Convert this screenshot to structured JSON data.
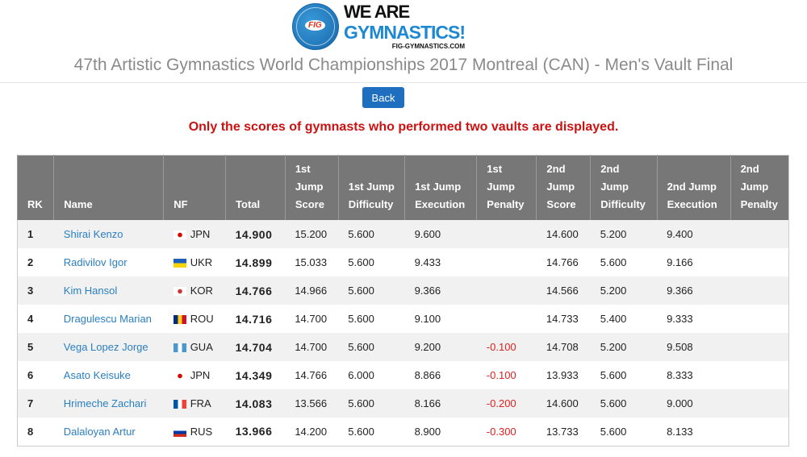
{
  "logo": {
    "line1": "WE ARE",
    "line2": "GYMNASTICS!",
    "line3": "FIG-GYMNASTICS.COM",
    "badge": "FIG"
  },
  "title": "47th Artistic Gymnastics World Championships 2017 Montreal (CAN) - Men's Vault Final",
  "back_label": "Back",
  "notice": "Only the scores of gymnasts who performed two vaults are displayed.",
  "columns": [
    "RK",
    "Name",
    "NF",
    "Total",
    "1st Jump Score",
    "1st Jump Difficulty",
    "1st Jump Execution",
    "1st Jump Penalty",
    "2nd Jump Score",
    "2nd Jump Difficulty",
    "2nd Jump Execution",
    "2nd Jump Penalty"
  ],
  "rows": [
    {
      "rk": "1",
      "name": "Shirai Kenzo",
      "nf": "JPN",
      "total": "14.900",
      "s1": "15.200",
      "d1": "5.600",
      "e1": "9.600",
      "p1": "",
      "s2": "14.600",
      "d2": "5.200",
      "e2": "9.400",
      "p2": ""
    },
    {
      "rk": "2",
      "name": "Radivilov Igor",
      "nf": "UKR",
      "total": "14.899",
      "s1": "15.033",
      "d1": "5.600",
      "e1": "9.433",
      "p1": "",
      "s2": "14.766",
      "d2": "5.600",
      "e2": "9.166",
      "p2": ""
    },
    {
      "rk": "3",
      "name": "Kim Hansol",
      "nf": "KOR",
      "total": "14.766",
      "s1": "14.966",
      "d1": "5.600",
      "e1": "9.366",
      "p1": "",
      "s2": "14.566",
      "d2": "5.200",
      "e2": "9.366",
      "p2": ""
    },
    {
      "rk": "4",
      "name": "Dragulescu Marian",
      "nf": "ROU",
      "total": "14.716",
      "s1": "14.700",
      "d1": "5.600",
      "e1": "9.100",
      "p1": "",
      "s2": "14.733",
      "d2": "5.400",
      "e2": "9.333",
      "p2": ""
    },
    {
      "rk": "5",
      "name": "Vega Lopez Jorge",
      "nf": "GUA",
      "total": "14.704",
      "s1": "14.700",
      "d1": "5.600",
      "e1": "9.200",
      "p1": "-0.100",
      "s2": "14.708",
      "d2": "5.200",
      "e2": "9.508",
      "p2": ""
    },
    {
      "rk": "6",
      "name": "Asato Keisuke",
      "nf": "JPN",
      "total": "14.349",
      "s1": "14.766",
      "d1": "6.000",
      "e1": "8.866",
      "p1": "-0.100",
      "s2": "13.933",
      "d2": "5.600",
      "e2": "8.333",
      "p2": ""
    },
    {
      "rk": "7",
      "name": "Hrimeche Zachari",
      "nf": "FRA",
      "total": "14.083",
      "s1": "13.566",
      "d1": "5.600",
      "e1": "8.166",
      "p1": "-0.200",
      "s2": "14.600",
      "d2": "5.600",
      "e2": "9.000",
      "p2": ""
    },
    {
      "rk": "8",
      "name": "Dalaloyan Artur",
      "nf": "RUS",
      "total": "13.966",
      "s1": "14.200",
      "d1": "5.600",
      "e1": "8.900",
      "p1": "-0.300",
      "s2": "13.733",
      "d2": "5.600",
      "e2": "8.133",
      "p2": ""
    }
  ],
  "flags": {
    "JPN": "background:radial-gradient(circle,#d00 2.5px,#fff 3px)",
    "UKR": "background:linear-gradient(#1d5fbf 50%,#f7d500 50%)",
    "KOR": "background:radial-gradient(circle,#c33 2.5px,#fff 3px)",
    "ROU": "background:linear-gradient(90deg,#002b7f 33%,#fcd116 33% 66%,#ce1126 66%)",
    "GUA": "background:linear-gradient(90deg,#4997d0 33%,#fff 33% 66%,#4997d0 66%)",
    "FRA": "background:linear-gradient(90deg,#0055a4 33%,#fff 33% 66%,#ef4135 66%)",
    "RUS": "background:linear-gradient(#fff 33%,#0039a6 33% 66%,#d52b1e 66%)"
  }
}
